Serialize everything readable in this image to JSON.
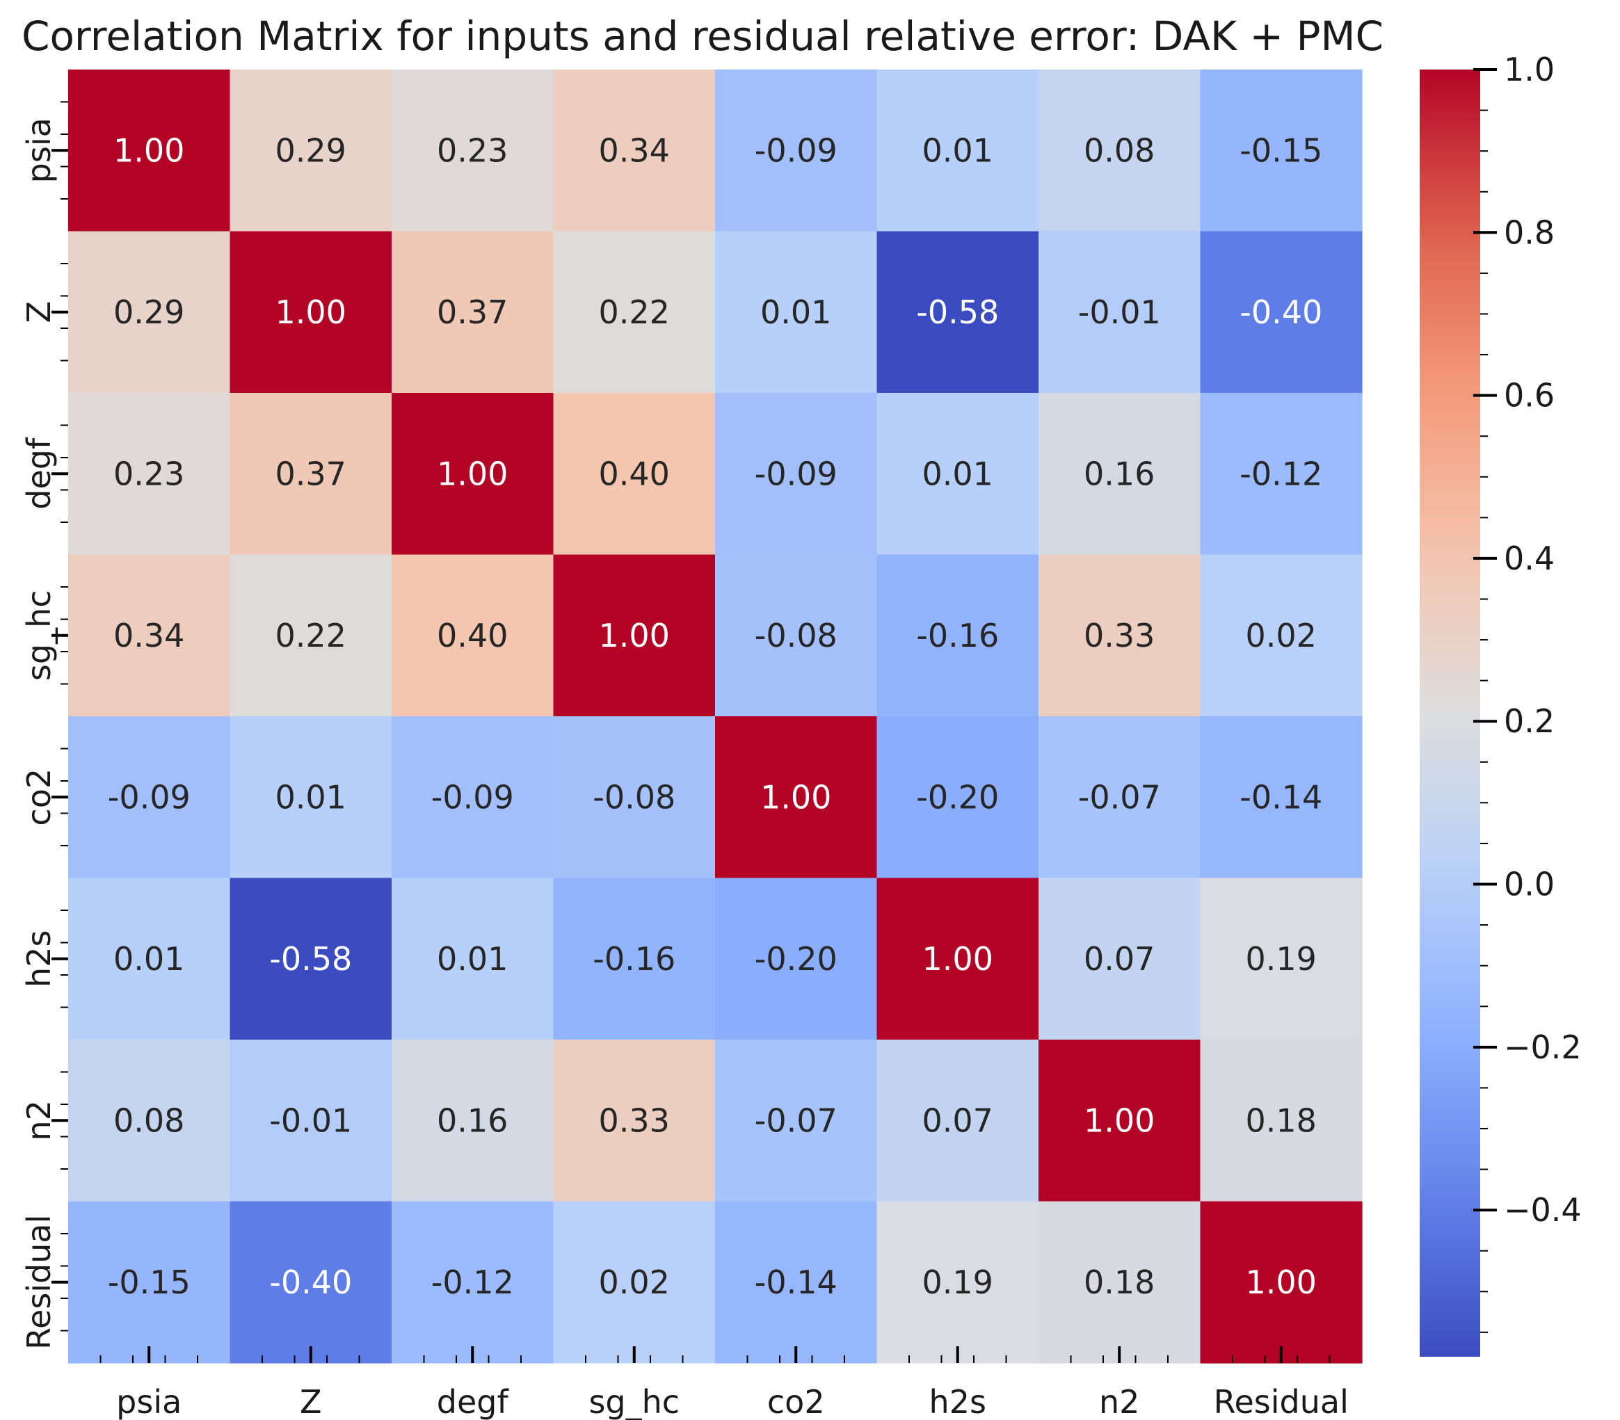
{
  "chart_data": {
    "type": "heatmap",
    "title": "Correlation Matrix for inputs and residual relative error: DAK + PMC",
    "xlabel": "",
    "ylabel": "",
    "categories": [
      "psia",
      "Z",
      "degf",
      "sg_hc",
      "co2",
      "h2s",
      "n2",
      "Residual"
    ],
    "values": [
      [
        1.0,
        0.29,
        0.23,
        0.34,
        -0.09,
        0.01,
        0.08,
        -0.15
      ],
      [
        0.29,
        1.0,
        0.37,
        0.22,
        0.01,
        -0.58,
        -0.01,
        -0.4
      ],
      [
        0.23,
        0.37,
        1.0,
        0.4,
        -0.09,
        0.01,
        0.16,
        -0.12
      ],
      [
        0.34,
        0.22,
        0.4,
        1.0,
        -0.08,
        -0.16,
        0.33,
        0.02
      ],
      [
        -0.09,
        0.01,
        -0.09,
        -0.08,
        1.0,
        -0.2,
        -0.07,
        -0.14
      ],
      [
        0.01,
        -0.58,
        0.01,
        -0.16,
        -0.2,
        1.0,
        0.07,
        0.19
      ],
      [
        0.08,
        -0.01,
        0.16,
        0.33,
        -0.07,
        0.07,
        1.0,
        0.18
      ],
      [
        -0.15,
        -0.4,
        -0.12,
        0.02,
        -0.14,
        0.19,
        0.18,
        1.0
      ]
    ],
    "annotation_format": "2 decimals",
    "colormap": "coolwarm",
    "colorbar": {
      "vmin": -0.58,
      "vmax": 1.0,
      "ticks": [
        1.0,
        0.8,
        0.6,
        0.4,
        0.2,
        0.0,
        -0.2,
        -0.4
      ],
      "tick_labels": [
        "1.0",
        "0.8",
        "0.6",
        "0.4",
        "0.2",
        "0.0",
        "−0.2",
        "−0.4"
      ]
    },
    "grid": false
  }
}
